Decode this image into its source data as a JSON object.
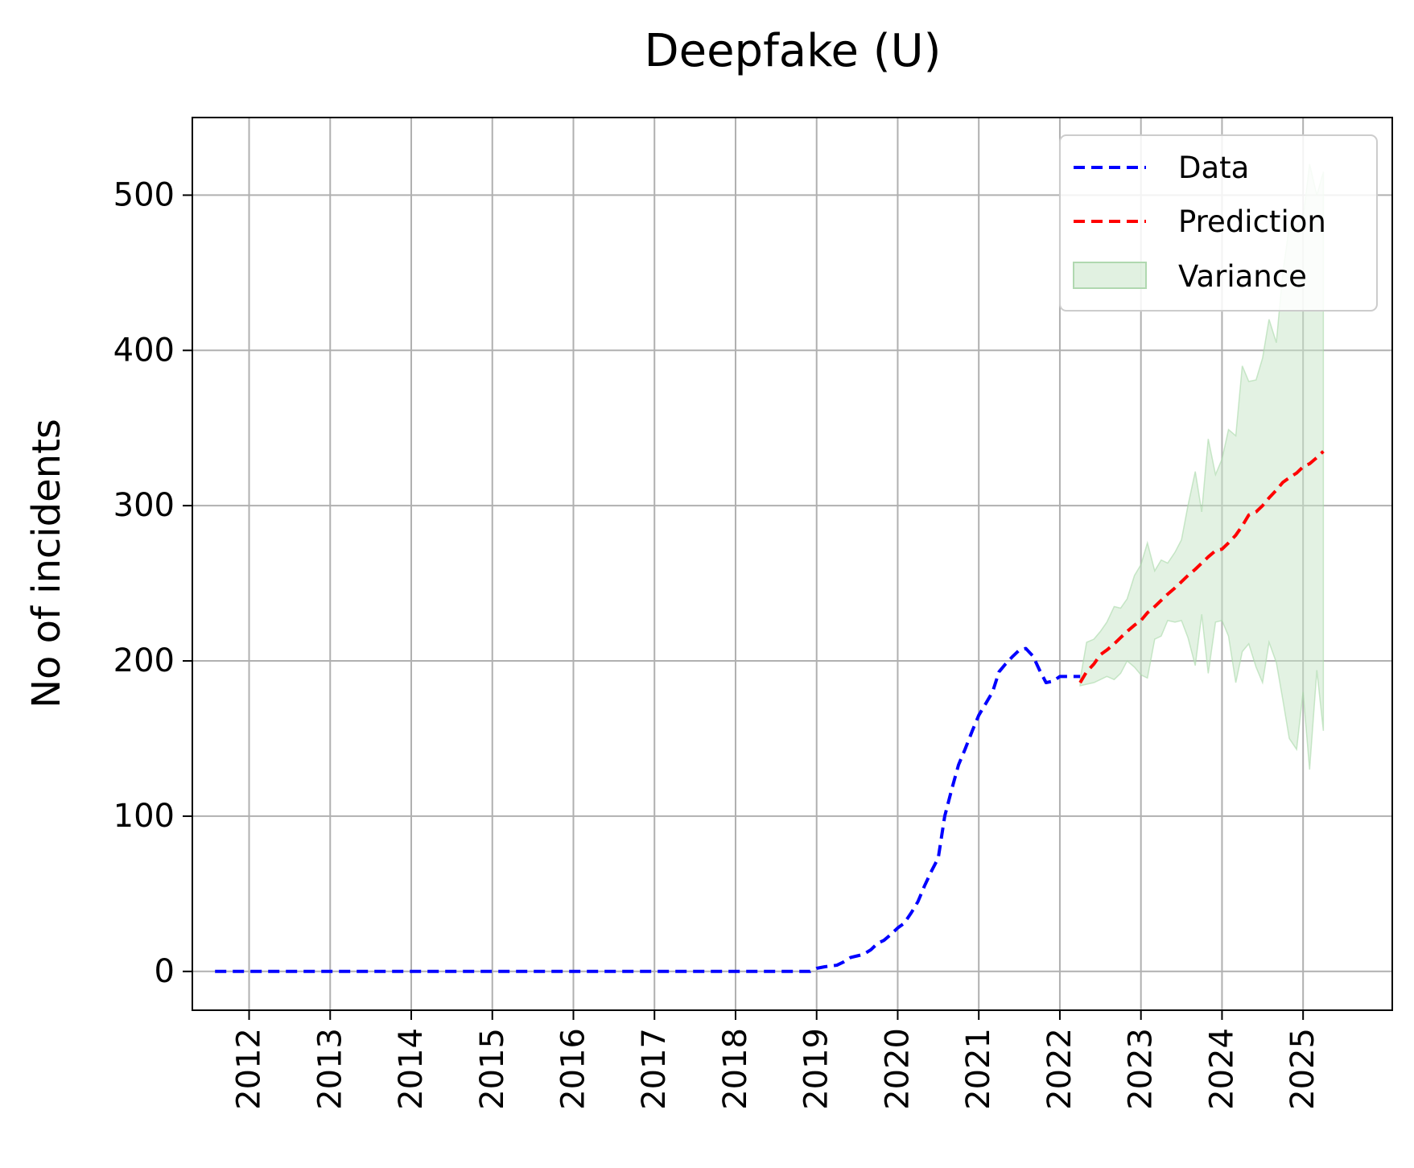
{
  "chart_data": {
    "type": "line",
    "title": "Deepfake (U)",
    "xlabel": "",
    "ylabel": "No of incidents",
    "xlim": [
      2011.3,
      2026.1
    ],
    "ylim": [
      -25,
      550
    ],
    "x_ticks": [
      2012,
      2013,
      2014,
      2015,
      2016,
      2017,
      2018,
      2019,
      2020,
      2021,
      2022,
      2023,
      2024,
      2025
    ],
    "x_tick_labels": [
      "2012",
      "2013",
      "2014",
      "2015",
      "2016",
      "2017",
      "2018",
      "2019",
      "2020",
      "2021",
      "2022",
      "2023",
      "2024",
      "2025"
    ],
    "y_ticks": [
      0,
      100,
      200,
      300,
      400,
      500
    ],
    "y_tick_labels": [
      "0",
      "100",
      "200",
      "300",
      "400",
      "500"
    ],
    "grid": true,
    "legend_position": "top-right",
    "legend": [
      "Data",
      "Prediction",
      "Variance"
    ],
    "colors": {
      "data": "#0000ff",
      "prediction": "#ff0000",
      "variance": "#c8e6c8",
      "grid": "#b0b0b0"
    },
    "series": [
      {
        "name": "Data",
        "style": "dashed",
        "color": "#0000ff",
        "x": [
          2011.58,
          2012.0,
          2013.0,
          2014.0,
          2015.0,
          2016.0,
          2017.0,
          2018.0,
          2018.83,
          2018.92,
          2019.0,
          2019.1,
          2019.25,
          2019.33,
          2019.42,
          2019.5,
          2019.58,
          2019.67,
          2019.75,
          2019.83,
          2019.92,
          2020.0,
          2020.08,
          2020.17,
          2020.25,
          2020.33,
          2020.42,
          2020.5,
          2020.58,
          2020.67,
          2020.75,
          2020.83,
          2020.92,
          2021.0,
          2021.08,
          2021.17,
          2021.25,
          2021.33,
          2021.42,
          2021.5,
          2021.58,
          2021.67,
          2021.75,
          2021.83,
          2021.92,
          2022.0,
          2022.08,
          2022.17,
          2022.25
        ],
        "y": [
          0,
          0,
          0,
          0,
          0,
          0,
          0,
          0,
          0,
          0,
          2,
          3,
          4,
          6,
          9,
          10,
          11,
          14,
          18,
          20,
          24,
          28,
          31,
          38,
          45,
          55,
          65,
          73,
          100,
          118,
          133,
          143,
          155,
          165,
          172,
          180,
          193,
          198,
          203,
          207,
          208,
          203,
          194,
          186,
          187,
          190,
          190,
          190,
          190
        ]
      },
      {
        "name": "Prediction",
        "style": "dashed",
        "color": "#ff0000",
        "x": [
          2022.25,
          2022.33,
          2022.42,
          2022.5,
          2022.58,
          2022.67,
          2022.75,
          2022.83,
          2022.92,
          2023.0,
          2023.08,
          2023.17,
          2023.25,
          2023.33,
          2023.42,
          2023.5,
          2023.58,
          2023.67,
          2023.75,
          2023.83,
          2023.92,
          2024.0,
          2024.08,
          2024.17,
          2024.25,
          2024.33,
          2024.42,
          2024.5,
          2024.58,
          2024.67,
          2024.75,
          2024.83,
          2024.92,
          2025.0,
          2025.08,
          2025.17,
          2025.25
        ],
        "y": [
          186,
          193,
          198,
          204,
          207,
          211,
          215,
          219,
          223,
          226,
          231,
          235,
          239,
          243,
          247,
          251,
          255,
          259,
          263,
          267,
          271,
          272,
          276,
          281,
          287,
          294,
          296,
          300,
          305,
          310,
          315,
          318,
          321,
          325,
          327,
          331,
          335
        ]
      }
    ],
    "variance_band": {
      "name": "Variance",
      "color": "#c8e6c8",
      "x": [
        2022.25,
        2022.33,
        2022.42,
        2022.5,
        2022.58,
        2022.67,
        2022.75,
        2022.83,
        2022.92,
        2023.0,
        2023.08,
        2023.17,
        2023.25,
        2023.33,
        2023.42,
        2023.5,
        2023.58,
        2023.67,
        2023.75,
        2023.83,
        2023.92,
        2024.0,
        2024.08,
        2024.17,
        2024.25,
        2024.33,
        2024.42,
        2024.5,
        2024.58,
        2024.67,
        2024.75,
        2024.83,
        2024.92,
        2025.0,
        2025.08,
        2025.17,
        2025.25
      ],
      "lower": [
        184,
        185,
        186,
        188,
        190,
        188,
        192,
        200,
        196,
        191,
        189,
        214,
        216,
        226,
        225,
        226,
        215,
        197,
        230,
        192,
        225,
        226,
        216,
        186,
        206,
        211,
        196,
        186,
        212,
        199,
        175,
        150,
        143,
        180,
        130,
        194,
        155
      ],
      "upper": [
        188,
        212,
        214,
        219,
        225,
        235,
        234,
        240,
        255,
        262,
        276,
        258,
        265,
        263,
        270,
        278,
        300,
        322,
        296,
        343,
        320,
        330,
        349,
        345,
        390,
        380,
        381,
        395,
        420,
        405,
        450,
        480,
        480,
        485,
        520,
        500,
        515
      ]
    }
  }
}
